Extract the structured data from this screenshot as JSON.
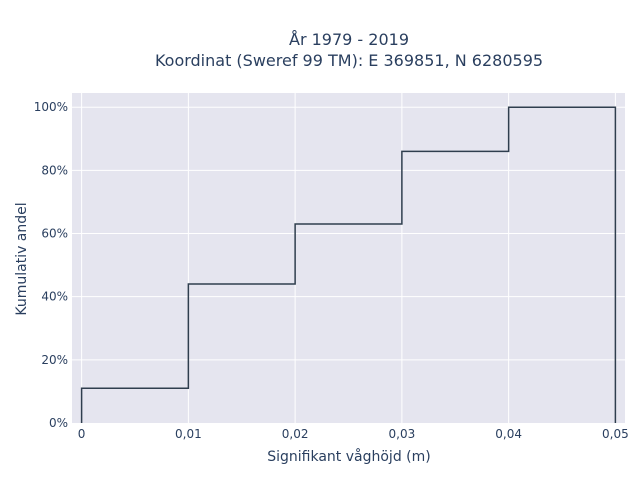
{
  "chart_data": {
    "type": "line",
    "line_shape": "step",
    "title_line1": "År 1979 - 2019",
    "title_line2": "Koordinat (Sweref 99 TM): E 369851, N 6280595",
    "xlabel": "Signifikant våghöjd (m)",
    "ylabel": "Kumulativ andel",
    "x_ticks": [
      0,
      0.01,
      0.02,
      0.03,
      0.04,
      0.05
    ],
    "x_tick_labels": [
      "0",
      "0,01",
      "0,02",
      "0,03",
      "0,04",
      "0,05"
    ],
    "y_ticks": [
      0,
      20,
      40,
      60,
      80,
      100
    ],
    "y_tick_labels": [
      "0%",
      "20%",
      "40%",
      "60%",
      "80%",
      "100%"
    ],
    "xlim": [
      -0.0009,
      0.0509
    ],
    "ylim": [
      0,
      104.5
    ],
    "grid": true,
    "points": [
      {
        "x": 0,
        "y": 0
      },
      {
        "x": 0,
        "y": 11
      },
      {
        "x": 0.01,
        "y": 11
      },
      {
        "x": 0.01,
        "y": 44
      },
      {
        "x": 0.02,
        "y": 44
      },
      {
        "x": 0.02,
        "y": 63
      },
      {
        "x": 0.03,
        "y": 63
      },
      {
        "x": 0.03,
        "y": 86
      },
      {
        "x": 0.04,
        "y": 86
      },
      {
        "x": 0.04,
        "y": 100
      },
      {
        "x": 0.05,
        "y": 100
      },
      {
        "x": 0.05,
        "y": 0
      }
    ],
    "colors": {
      "plot_bg": "#e5e5ef",
      "grid": "#ffffff",
      "line": "#2f3e4e",
      "text": "#2a3f5f"
    }
  }
}
